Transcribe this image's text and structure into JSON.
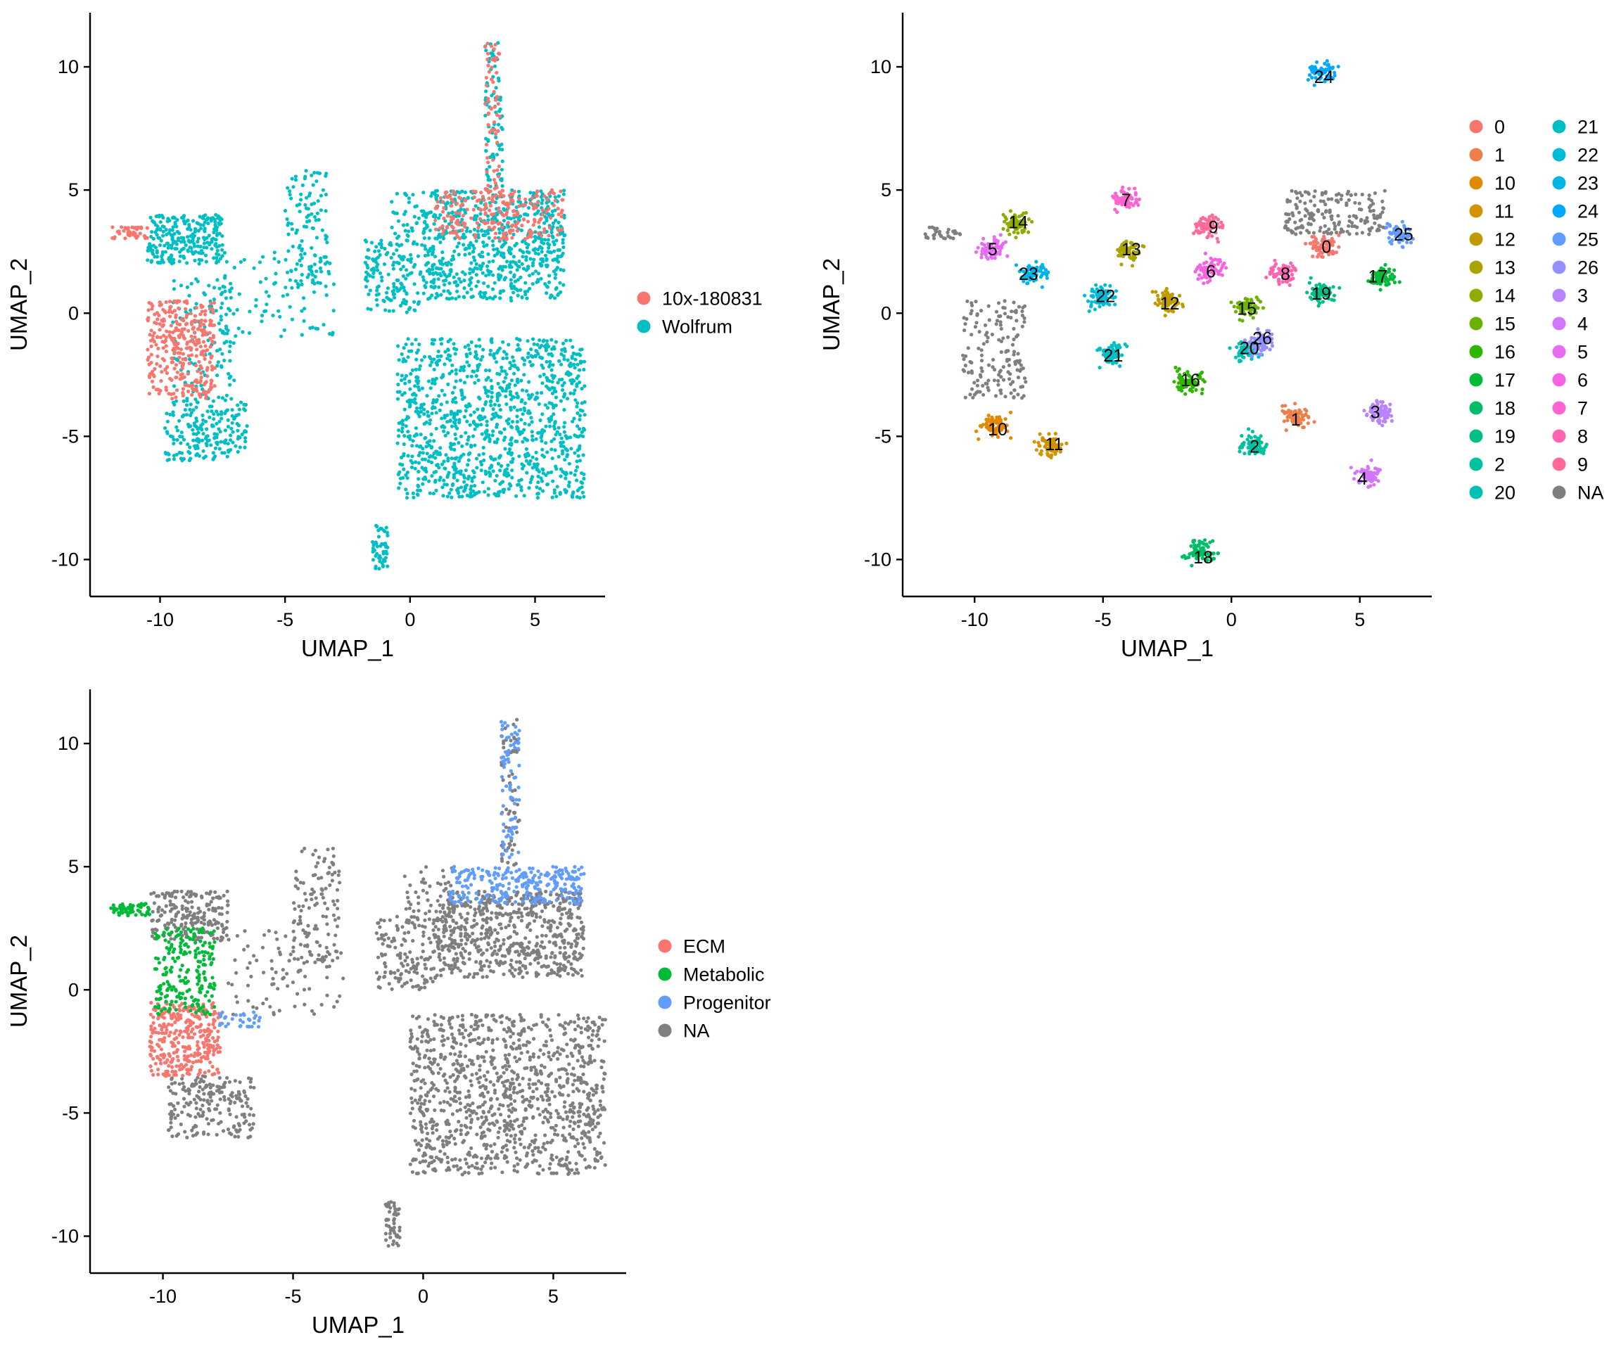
{
  "chart_data": [
    {
      "type": "scatter",
      "title": "",
      "xlabel": "UMAP_1",
      "ylabel": "UMAP_2",
      "xlim": [
        -12.8,
        7.8
      ],
      "ylim": [
        -11.5,
        12.2
      ],
      "x_ticks": [
        -10,
        -5,
        0,
        5
      ],
      "y_ticks": [
        -10,
        -5,
        0,
        5,
        10
      ],
      "legend_position": "right",
      "legend_columns": 1,
      "series": [
        {
          "name": "10x-180831",
          "color": "#F8766D"
        },
        {
          "name": "Wolfrum",
          "color": "#00BFC4"
        }
      ],
      "regions": [
        {
          "series": "Wolfrum",
          "x": [
            -10.5,
            -7.5
          ],
          "y": [
            2.0,
            4.0
          ],
          "n": 260
        },
        {
          "series": "Wolfrum",
          "x": [
            -9.8,
            -6.5
          ],
          "y": [
            -6.0,
            -3.5
          ],
          "n": 200
        },
        {
          "series": "Wolfrum",
          "x": [
            -9.5,
            -7.0
          ],
          "y": [
            -3.5,
            1.5
          ],
          "n": 120
        },
        {
          "series": "Wolfrum",
          "x": [
            -5.0,
            -3.2
          ],
          "y": [
            1.0,
            5.8
          ],
          "n": 110
        },
        {
          "series": "Wolfrum",
          "x": [
            -7.5,
            -3.0
          ],
          "y": [
            -1.0,
            2.5
          ],
          "n": 90
        },
        {
          "series": "Wolfrum",
          "x": [
            -1.8,
            0.5
          ],
          "y": [
            0.0,
            3.0
          ],
          "n": 150
        },
        {
          "series": "Wolfrum",
          "x": [
            -0.8,
            1.2
          ],
          "y": [
            3.0,
            5.0
          ],
          "n": 50
        },
        {
          "series": "Wolfrum",
          "x": [
            0.5,
            6.2
          ],
          "y": [
            0.5,
            5.0
          ],
          "n": 700
        },
        {
          "series": "Wolfrum",
          "x": [
            3.0,
            3.7
          ],
          "y": [
            5.0,
            11.0
          ],
          "n": 90
        },
        {
          "series": "Wolfrum",
          "x": [
            -0.5,
            7.0
          ],
          "y": [
            -7.5,
            -1.0
          ],
          "n": 1100
        },
        {
          "series": "Wolfrum",
          "x": [
            -1.5,
            -0.9
          ],
          "y": [
            -10.4,
            -8.6
          ],
          "n": 50
        },
        {
          "series": "10x-180831",
          "x": [
            -10.5,
            -7.8
          ],
          "y": [
            -3.5,
            0.5
          ],
          "n": 330
        },
        {
          "series": "10x-180831",
          "x": [
            -12.0,
            -10.5
          ],
          "y": [
            3.0,
            3.5
          ],
          "n": 40
        },
        {
          "series": "10x-180831",
          "x": [
            1.0,
            6.2
          ],
          "y": [
            3.0,
            5.0
          ],
          "n": 220
        },
        {
          "series": "10x-180831",
          "x": [
            3.0,
            3.6
          ],
          "y": [
            5.0,
            11.0
          ],
          "n": 60
        }
      ]
    },
    {
      "type": "scatter",
      "title": "",
      "xlabel": "UMAP_1",
      "ylabel": "UMAP_2",
      "xlim": [
        -12.8,
        7.8
      ],
      "ylim": [
        -11.5,
        12.2
      ],
      "x_ticks": [
        -10,
        -5,
        0,
        5
      ],
      "y_ticks": [
        -10,
        -5,
        0,
        5,
        10
      ],
      "legend_position": "right",
      "legend_columns": 2,
      "series": [
        {
          "name": "0",
          "color": "#F8766D",
          "cx": 3.6,
          "cy": 2.7
        },
        {
          "name": "1",
          "color": "#EF7F49",
          "cx": 2.5,
          "cy": -4.2
        },
        {
          "name": "10",
          "color": "#E38900",
          "cx": -9.2,
          "cy": -4.6
        },
        {
          "name": "11",
          "color": "#D39200",
          "cx": -7.0,
          "cy": -5.4
        },
        {
          "name": "12",
          "color": "#C09B00",
          "cx": -2.5,
          "cy": 0.5
        },
        {
          "name": "13",
          "color": "#A9A400",
          "cx": -4.0,
          "cy": 2.5
        },
        {
          "name": "14",
          "color": "#8EAB00",
          "cx": -8.4,
          "cy": 3.7
        },
        {
          "name": "15",
          "color": "#6BB100",
          "cx": 0.6,
          "cy": 0.2
        },
        {
          "name": "16",
          "color": "#2FB600",
          "cx": -1.6,
          "cy": -2.8
        },
        {
          "name": "17",
          "color": "#00BA38",
          "cx": 5.8,
          "cy": 1.5
        },
        {
          "name": "18",
          "color": "#00BE67",
          "cx": -1.2,
          "cy": -9.7
        },
        {
          "name": "19",
          "color": "#00BF86",
          "cx": 3.5,
          "cy": 0.8
        },
        {
          "name": "2",
          "color": "#00C19F",
          "cx": 0.9,
          "cy": -5.3
        },
        {
          "name": "20",
          "color": "#00C0B4",
          "cx": 0.6,
          "cy": -1.5
        },
        {
          "name": "21",
          "color": "#00BFC4",
          "cx": -4.7,
          "cy": -1.7
        },
        {
          "name": "22",
          "color": "#00BBD6",
          "cx": -5.0,
          "cy": 0.7
        },
        {
          "name": "23",
          "color": "#00B4E6",
          "cx": -7.7,
          "cy": 1.6
        },
        {
          "name": "24",
          "color": "#00A9FF",
          "cx": 3.5,
          "cy": 9.8
        },
        {
          "name": "25",
          "color": "#619CFF",
          "cx": 6.5,
          "cy": 3.2
        },
        {
          "name": "26",
          "color": "#9590FF",
          "cx": 1.2,
          "cy": -1.2
        },
        {
          "name": "3",
          "color": "#B983FF",
          "cx": 5.8,
          "cy": -4.0
        },
        {
          "name": "4",
          "color": "#D376FF",
          "cx": 5.3,
          "cy": -6.6
        },
        {
          "name": "5",
          "color": "#E86BF4",
          "cx": -9.3,
          "cy": 2.6
        },
        {
          "name": "6",
          "color": "#F563E3",
          "cx": -0.8,
          "cy": 1.8
        },
        {
          "name": "7",
          "color": "#FF62D1",
          "cx": -4.1,
          "cy": 4.6
        },
        {
          "name": "8",
          "color": "#FF64B0",
          "cx": 2.0,
          "cy": 1.6
        },
        {
          "name": "9",
          "color": "#FF6A98",
          "cx": -0.9,
          "cy": 3.5
        },
        {
          "name": "NA",
          "color": "#7F7F7F"
        }
      ],
      "cluster_labels": [
        {
          "text": "24",
          "x": 3.6,
          "y": 9.6
        },
        {
          "text": "7",
          "x": -4.1,
          "y": 4.6
        },
        {
          "text": "14",
          "x": -8.3,
          "y": 3.7
        },
        {
          "text": "9",
          "x": -0.7,
          "y": 3.5
        },
        {
          "text": "25",
          "x": 6.7,
          "y": 3.2
        },
        {
          "text": "0",
          "x": 3.7,
          "y": 2.7
        },
        {
          "text": "5",
          "x": -9.3,
          "y": 2.6
        },
        {
          "text": "13",
          "x": -3.9,
          "y": 2.6
        },
        {
          "text": "23",
          "x": -7.9,
          "y": 1.6
        },
        {
          "text": "6",
          "x": -0.8,
          "y": 1.7
        },
        {
          "text": "8",
          "x": 2.1,
          "y": 1.6
        },
        {
          "text": "17",
          "x": 5.7,
          "y": 1.5
        },
        {
          "text": "19",
          "x": 3.5,
          "y": 0.8
        },
        {
          "text": "22",
          "x": -4.9,
          "y": 0.7
        },
        {
          "text": "12",
          "x": -2.4,
          "y": 0.4
        },
        {
          "text": "15",
          "x": 0.6,
          "y": 0.2
        },
        {
          "text": "26",
          "x": 1.2,
          "y": -1.0
        },
        {
          "text": "20",
          "x": 0.7,
          "y": -1.4
        },
        {
          "text": "21",
          "x": -4.6,
          "y": -1.7
        },
        {
          "text": "16",
          "x": -1.6,
          "y": -2.7
        },
        {
          "text": "3",
          "x": 5.6,
          "y": -4.0
        },
        {
          "text": "1",
          "x": 2.5,
          "y": -4.3
        },
        {
          "text": "10",
          "x": -9.1,
          "y": -4.7
        },
        {
          "text": "11",
          "x": -6.9,
          "y": -5.3
        },
        {
          "text": "2",
          "x": 0.9,
          "y": -5.4
        },
        {
          "text": "4",
          "x": 5.1,
          "y": -6.7
        },
        {
          "text": "18",
          "x": -1.1,
          "y": -9.9
        }
      ]
    },
    {
      "type": "scatter",
      "title": "",
      "xlabel": "UMAP_1",
      "ylabel": "UMAP_2",
      "xlim": [
        -12.8,
        7.8
      ],
      "ylim": [
        -11.5,
        12.2
      ],
      "x_ticks": [
        -10,
        -5,
        0,
        5
      ],
      "y_ticks": [
        -10,
        -5,
        0,
        5,
        10
      ],
      "legend_position": "right",
      "legend_columns": 1,
      "series": [
        {
          "name": "ECM",
          "color": "#F8766D"
        },
        {
          "name": "Metabolic",
          "color": "#00BA38"
        },
        {
          "name": "Progenitor",
          "color": "#619CFF"
        },
        {
          "name": "NA",
          "color": "#7F7F7F"
        }
      ],
      "regions": [
        {
          "series": "NA",
          "x": [
            -10.5,
            -7.5
          ],
          "y": [
            2.0,
            4.0
          ],
          "n": 200
        },
        {
          "series": "NA",
          "x": [
            -9.8,
            -6.5
          ],
          "y": [
            -6.0,
            -3.5
          ],
          "n": 200
        },
        {
          "series": "NA",
          "x": [
            -5.0,
            -3.2
          ],
          "y": [
            1.0,
            5.8
          ],
          "n": 110
        },
        {
          "series": "NA",
          "x": [
            -7.5,
            -3.0
          ],
          "y": [
            -1.0,
            2.5
          ],
          "n": 90
        },
        {
          "series": "NA",
          "x": [
            -1.8,
            0.5
          ],
          "y": [
            0.0,
            3.0
          ],
          "n": 150
        },
        {
          "series": "NA",
          "x": [
            -0.8,
            1.2
          ],
          "y": [
            3.0,
            5.0
          ],
          "n": 50
        },
        {
          "series": "NA",
          "x": [
            0.5,
            6.2
          ],
          "y": [
            0.5,
            4.0
          ],
          "n": 650
        },
        {
          "series": "NA",
          "x": [
            3.0,
            3.7
          ],
          "y": [
            5.0,
            11.0
          ],
          "n": 60
        },
        {
          "series": "NA",
          "x": [
            -0.5,
            7.0
          ],
          "y": [
            -7.5,
            -1.0
          ],
          "n": 1100
        },
        {
          "series": "NA",
          "x": [
            -1.5,
            -0.9
          ],
          "y": [
            -10.4,
            -8.6
          ],
          "n": 50
        },
        {
          "series": "ECM",
          "x": [
            -10.5,
            -7.8
          ],
          "y": [
            -3.5,
            -0.5
          ],
          "n": 330
        },
        {
          "series": "Metabolic",
          "x": [
            -10.3,
            -8.0
          ],
          "y": [
            -1.0,
            2.5
          ],
          "n": 220
        },
        {
          "series": "Metabolic",
          "x": [
            -12.0,
            -10.5
          ],
          "y": [
            3.0,
            3.5
          ],
          "n": 60
        },
        {
          "series": "Progenitor",
          "x": [
            1.0,
            6.2
          ],
          "y": [
            3.5,
            5.0
          ],
          "n": 260
        },
        {
          "series": "Progenitor",
          "x": [
            3.0,
            3.7
          ],
          "y": [
            5.0,
            11.0
          ],
          "n": 80
        },
        {
          "series": "Progenitor",
          "x": [
            -8.0,
            -6.0
          ],
          "y": [
            -1.5,
            -0.9
          ],
          "n": 30
        }
      ]
    }
  ]
}
